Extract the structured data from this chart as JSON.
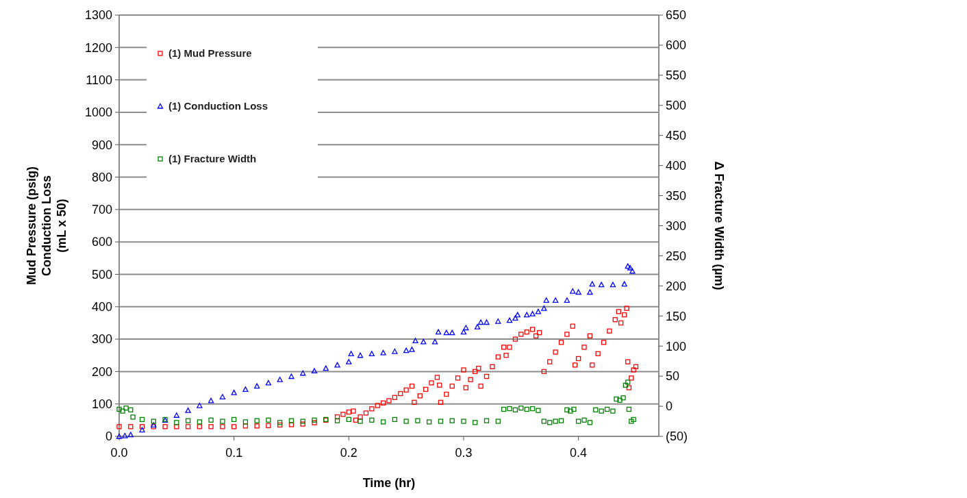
{
  "chart_data": {
    "type": "scatter",
    "xlabel": "Time (hr)",
    "ylabel": "Mud Pressure (psig)\nConduction Loss\n(mL x 50)",
    "y2label": "Δ Fracture Width (µm)",
    "xlim": [
      0,
      0.47
    ],
    "xticks": [
      {
        "value": 0,
        "label": "0.0"
      },
      0.1,
      0.2,
      0.3,
      0.4
    ],
    "ylim": [
      0,
      1300
    ],
    "yticks": [
      0,
      100,
      200,
      300,
      400,
      500,
      600,
      700,
      800,
      900,
      1000,
      1100,
      1200,
      1300
    ],
    "y2lim": [
      -50,
      650
    ],
    "y2ticks": [
      {
        "value": -50,
        "label": "(50)"
      },
      0,
      50,
      100,
      150,
      200,
      250,
      300,
      350,
      400,
      450,
      500,
      550,
      600,
      650
    ],
    "grid": "y",
    "legend": "top left",
    "series": [
      {
        "name": "(1) Mud Pressure",
        "color": "#ff0000",
        "marker": "square",
        "x": [
          0,
          0.01,
          0.02,
          0.03,
          0.04,
          0.05,
          0.06,
          0.07,
          0.08,
          0.09,
          0.1,
          0.11,
          0.12,
          0.13,
          0.14,
          0.15,
          0.16,
          0.17,
          0.18,
          0.19,
          0.195,
          0.2,
          0.204,
          0.206,
          0.21,
          0.215,
          0.22,
          0.225,
          0.23,
          0.235,
          0.24,
          0.245,
          0.25,
          0.255,
          0.257,
          0.262,
          0.267,
          0.272,
          0.277,
          0.279,
          0.28,
          0.285,
          0.29,
          0.295,
          0.3,
          0.302,
          0.306,
          0.31,
          0.313,
          0.315,
          0.32,
          0.325,
          0.33,
          0.335,
          0.337,
          0.34,
          0.345,
          0.35,
          0.355,
          0.36,
          0.363,
          0.366,
          0.37,
          0.375,
          0.38,
          0.385,
          0.39,
          0.395,
          0.397,
          0.4,
          0.405,
          0.41,
          0.412,
          0.417,
          0.422,
          0.427,
          0.432,
          0.435,
          0.437,
          0.44,
          0.442,
          0.443,
          0.444,
          0.446,
          0.448,
          0.45
        ],
        "values": [
          30,
          30,
          30,
          30,
          30,
          30,
          30,
          30,
          30,
          30,
          30,
          32,
          32,
          33,
          35,
          36,
          38,
          42,
          50,
          60,
          68,
          75,
          78,
          50,
          60,
          72,
          85,
          95,
          103,
          110,
          120,
          132,
          143,
          155,
          105,
          125,
          145,
          165,
          182,
          158,
          105,
          130,
          155,
          180,
          205,
          150,
          175,
          200,
          210,
          155,
          185,
          215,
          245,
          275,
          250,
          275,
          300,
          315,
          322,
          330,
          310,
          320,
          200,
          230,
          260,
          290,
          315,
          340,
          220,
          240,
          275,
          310,
          220,
          255,
          290,
          325,
          360,
          385,
          350,
          375,
          395,
          230,
          150,
          180,
          205,
          215
        ]
      },
      {
        "name": "(1) Conduction Loss",
        "color": "#0000ff",
        "marker": "triangle",
        "x": [
          0,
          0.005,
          0.01,
          0.02,
          0.03,
          0.04,
          0.05,
          0.06,
          0.07,
          0.08,
          0.09,
          0.1,
          0.11,
          0.12,
          0.13,
          0.14,
          0.15,
          0.16,
          0.17,
          0.18,
          0.19,
          0.2,
          0.202,
          0.21,
          0.22,
          0.23,
          0.24,
          0.25,
          0.255,
          0.258,
          0.265,
          0.275,
          0.278,
          0.285,
          0.29,
          0.3,
          0.302,
          0.312,
          0.315,
          0.32,
          0.33,
          0.34,
          0.345,
          0.347,
          0.355,
          0.36,
          0.365,
          0.37,
          0.372,
          0.38,
          0.39,
          0.395,
          0.4,
          0.41,
          0.412,
          0.42,
          0.43,
          0.44,
          0.443,
          0.445,
          0.447
        ],
        "values": [
          0,
          2,
          5,
          20,
          35,
          50,
          65,
          80,
          95,
          110,
          122,
          135,
          145,
          155,
          165,
          175,
          185,
          195,
          202,
          210,
          220,
          230,
          255,
          250,
          255,
          258,
          262,
          265,
          268,
          295,
          292,
          292,
          322,
          320,
          320,
          322,
          335,
          338,
          352,
          352,
          355,
          358,
          365,
          375,
          375,
          378,
          385,
          395,
          420,
          420,
          420,
          448,
          445,
          445,
          470,
          468,
          468,
          470,
          525,
          520,
          510
        ]
      },
      {
        "name": "(1) Fracture Width",
        "color": "#008000",
        "marker": "square",
        "axis": "y2",
        "x": [
          0,
          0.003,
          0.006,
          0.01,
          0.012,
          0.02,
          0.03,
          0.04,
          0.05,
          0.06,
          0.07,
          0.08,
          0.09,
          0.1,
          0.11,
          0.12,
          0.13,
          0.14,
          0.15,
          0.16,
          0.17,
          0.18,
          0.19,
          0.2,
          0.21,
          0.22,
          0.23,
          0.24,
          0.25,
          0.26,
          0.27,
          0.28,
          0.29,
          0.3,
          0.31,
          0.32,
          0.33,
          0.335,
          0.34,
          0.345,
          0.35,
          0.355,
          0.36,
          0.365,
          0.37,
          0.375,
          0.38,
          0.385,
          0.39,
          0.393,
          0.396,
          0.4,
          0.405,
          0.41,
          0.415,
          0.42,
          0.425,
          0.43,
          0.433,
          0.436,
          0.439,
          0.441,
          0.443,
          0.444,
          0.446,
          0.448
        ],
        "values": [
          -5,
          -8,
          -3,
          -6,
          -18,
          -22,
          -25,
          -22,
          -27,
          -24,
          -26,
          -23,
          -25,
          -22,
          -26,
          -24,
          -23,
          -27,
          -24,
          -25,
          -23,
          -22,
          -24,
          -22,
          -25,
          -23,
          -26,
          -22,
          -25,
          -24,
          -26,
          -25,
          -24,
          -25,
          -27,
          -24,
          -25,
          -5,
          -4,
          -6,
          -3,
          -5,
          -4,
          -7,
          -25,
          -27,
          -25,
          -24,
          -6,
          -8,
          -5,
          -25,
          -23,
          -27,
          -6,
          -8,
          -5,
          -8,
          12,
          10,
          14,
          35,
          40,
          -5,
          -25,
          -22
        ]
      }
    ]
  }
}
